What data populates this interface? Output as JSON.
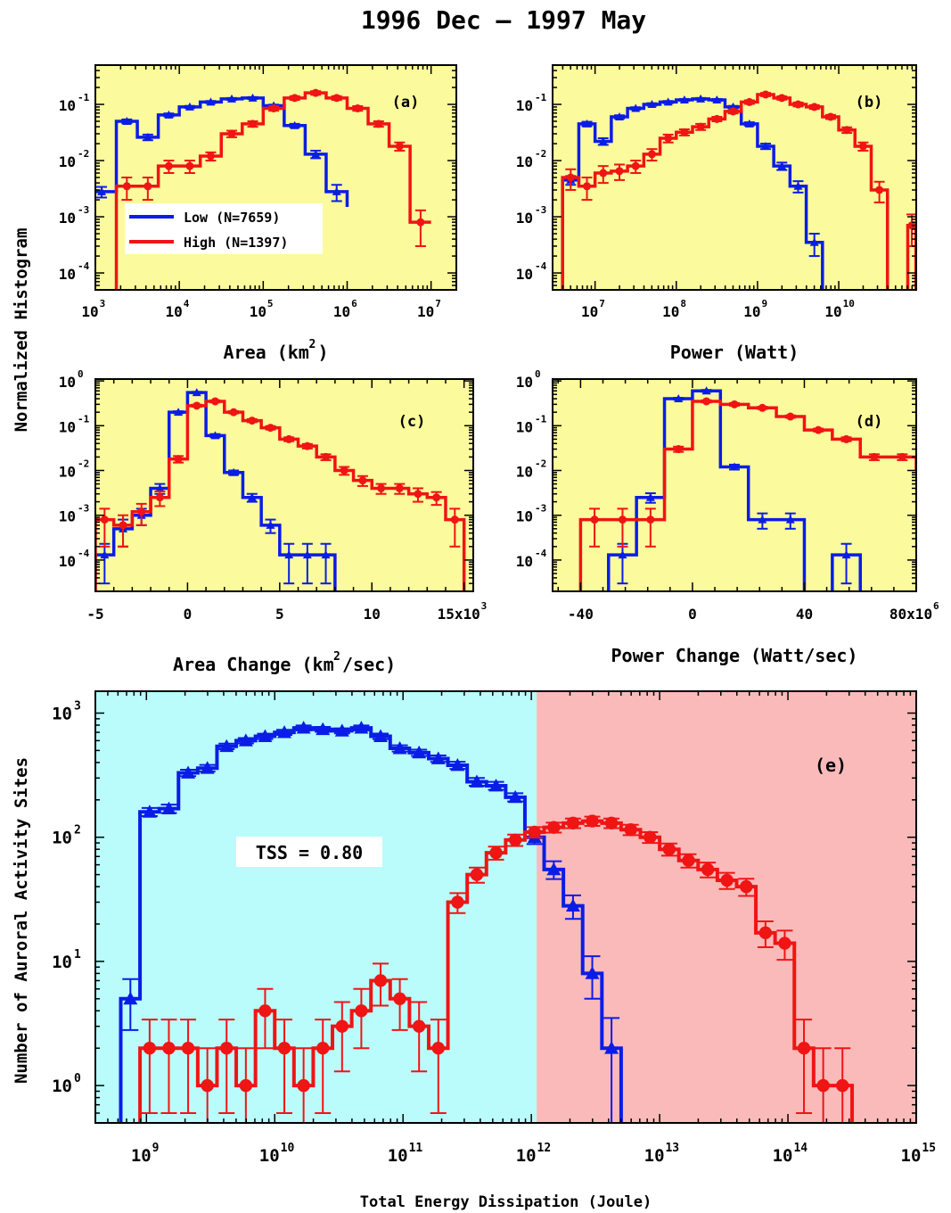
{
  "title": "1996 Dec – 1997 May",
  "shared_ylabel_top": "Normalized Histogram",
  "colors": {
    "low": "#0a1de6",
    "high": "#f01414",
    "panel_bg": "#fbfa9c",
    "low_region": "#bafcfc",
    "high_region": "#fbbaba"
  },
  "chart_data": [
    {
      "id": "a",
      "panel_label": "(a)",
      "type": "line",
      "xlabel": "Area (km",
      "xlabel_sup": "2",
      "xlabel_end": ")",
      "xscale": "log",
      "xlim": [
        1000,
        20000000
      ],
      "yscale": "log",
      "ylim": [
        5e-05,
        0.5
      ],
      "xticks": [
        {
          "v": 1000,
          "base": "10",
          "exp": "3"
        },
        {
          "v": 10000,
          "base": "10",
          "exp": "4"
        },
        {
          "v": 100000,
          "base": "10",
          "exp": "5"
        },
        {
          "v": 1000000,
          "base": "10",
          "exp": "6"
        },
        {
          "v": 10000000,
          "base": "10",
          "exp": "7"
        }
      ],
      "yticks": [
        {
          "v": 0.1,
          "base": "10",
          "exp": "-1"
        },
        {
          "v": 0.01,
          "base": "10",
          "exp": "-2"
        },
        {
          "v": 0.001,
          "base": "10",
          "exp": "-3"
        },
        {
          "v": 0.0001,
          "base": "10",
          "exp": "-4"
        }
      ],
      "legend": [
        {
          "name": "Low (N=7659)",
          "color": "low"
        },
        {
          "name": "High (N=1397)",
          "color": "high"
        }
      ],
      "series": [
        {
          "name": "Low (N=7659)",
          "color": "low",
          "marker": "triangle",
          "edges_log": [
            2.9,
            3.25,
            3.5,
            3.75,
            4.0,
            4.25,
            4.5,
            4.75,
            5.0,
            5.25,
            5.5,
            5.75,
            6.0
          ],
          "values": [
            0.0028,
            0.05,
            0.026,
            0.065,
            0.09,
            0.11,
            0.125,
            0.13,
            0.095,
            0.042,
            0.013,
            0.0028,
            0.0015
          ],
          "errors": [
            0.0006,
            0.004,
            0.003,
            0.004,
            0.004,
            0.005,
            0.005,
            0.005,
            0.004,
            0.003,
            0.002,
            0.0009,
            0.0005
          ]
        },
        {
          "name": "High (N=1397)",
          "color": "high",
          "marker": "circle",
          "edges_log": [
            3.25,
            3.5,
            3.75,
            4.0,
            4.25,
            4.5,
            4.75,
            5.0,
            5.25,
            5.5,
            5.75,
            6.0,
            6.25,
            6.5,
            6.75,
            7.0
          ],
          "values": [
            0.0035,
            0.0035,
            0.008,
            0.008,
            0.012,
            0.03,
            0.045,
            0.085,
            0.13,
            0.16,
            0.13,
            0.085,
            0.045,
            0.018,
            0.0008,
            0.0008
          ],
          "errors": [
            0.0015,
            0.0015,
            0.002,
            0.002,
            0.002,
            0.004,
            0.005,
            0.008,
            0.01,
            0.012,
            0.01,
            0.008,
            0.005,
            0.003,
            0.0005,
            0.0005
          ]
        }
      ]
    },
    {
      "id": "b",
      "panel_label": "(b)",
      "type": "line",
      "xlabel": "Power (Watt)",
      "xlabel_sup": "",
      "xlabel_end": "",
      "xscale": "log",
      "xlim": [
        3000000,
        90000000000
      ],
      "yscale": "log",
      "ylim": [
        5e-05,
        0.5
      ],
      "xticks": [
        {
          "v": 10000000,
          "base": "10",
          "exp": "7"
        },
        {
          "v": 100000000,
          "base": "10",
          "exp": "8"
        },
        {
          "v": 1000000000,
          "base": "10",
          "exp": "9"
        },
        {
          "v": 10000000000,
          "base": "10",
          "exp": "10"
        }
      ],
      "yticks": [
        {
          "v": 0.1,
          "base": "10",
          "exp": "-1"
        },
        {
          "v": 0.01,
          "base": "10",
          "exp": "-2"
        },
        {
          "v": 0.001,
          "base": "10",
          "exp": "-3"
        },
        {
          "v": 0.0001,
          "base": "10",
          "exp": "-4"
        }
      ],
      "series": [
        {
          "name": "Low",
          "color": "low",
          "marker": "triangle",
          "edges_log": [
            6.6,
            6.8,
            7.0,
            7.2,
            7.4,
            7.6,
            7.8,
            8.0,
            8.2,
            8.4,
            8.6,
            8.8,
            9.0,
            9.2,
            9.4,
            9.6,
            9.8
          ],
          "values": [
            0.0045,
            0.045,
            0.022,
            0.06,
            0.085,
            0.1,
            0.11,
            0.12,
            0.125,
            0.12,
            0.09,
            0.045,
            0.018,
            0.008,
            0.0035,
            0.00035
          ],
          "errors": [
            0.0008,
            0.004,
            0.003,
            0.004,
            0.004,
            0.005,
            0.005,
            0.005,
            0.005,
            0.005,
            0.004,
            0.003,
            0.002,
            0.0012,
            0.0008,
            0.00015
          ]
        },
        {
          "name": "High",
          "color": "high",
          "marker": "circle",
          "edges_log": [
            6.6,
            6.8,
            7.0,
            7.2,
            7.4,
            7.6,
            7.8,
            8.0,
            8.2,
            8.4,
            8.6,
            8.8,
            9.0,
            9.2,
            9.4,
            9.6,
            9.8,
            10.0,
            10.2,
            10.4,
            10.6
          ],
          "values": [
            0.005,
            0.0035,
            0.006,
            0.0065,
            0.008,
            0.013,
            0.025,
            0.032,
            0.04,
            0.055,
            0.075,
            0.11,
            0.15,
            0.13,
            0.1,
            0.09,
            0.06,
            0.035,
            0.018,
            0.003
          ],
          "errors": [
            0.002,
            0.0015,
            0.002,
            0.002,
            0.002,
            0.003,
            0.004,
            0.004,
            0.005,
            0.005,
            0.006,
            0.008,
            0.01,
            0.009,
            0.008,
            0.007,
            0.005,
            0.004,
            0.003,
            0.0012
          ]
        },
        {
          "name": "High tail",
          "color": "high",
          "marker": "circle",
          "edges_log": [
            10.85,
            10.95
          ],
          "values": [
            0.0007
          ],
          "errors": [
            0.0004
          ]
        }
      ]
    },
    {
      "id": "c",
      "panel_label": "(c)",
      "type": "line",
      "xlabel": "Area Change (km",
      "xlabel_sup": "2",
      "xlabel_end": "/sec)",
      "xscale": "linear",
      "xlim": [
        -5000,
        15500
      ],
      "yscale": "log",
      "ylim": [
        2e-05,
        1.1
      ],
      "xticks": [
        {
          "v": -5000,
          "base": "-5",
          "exp": ""
        },
        {
          "v": 0,
          "base": "0",
          "exp": ""
        },
        {
          "v": 5000,
          "base": "5",
          "exp": ""
        },
        {
          "v": 10000,
          "base": "10",
          "exp": ""
        },
        {
          "v": 15000,
          "base": "15x10",
          "exp": "3"
        }
      ],
      "yticks": [
        {
          "v": 1,
          "base": "10",
          "exp": "0"
        },
        {
          "v": 0.1,
          "base": "10",
          "exp": "-1"
        },
        {
          "v": 0.01,
          "base": "10",
          "exp": "-2"
        },
        {
          "v": 0.001,
          "base": "10",
          "exp": "-3"
        },
        {
          "v": 0.0001,
          "base": "10",
          "exp": "-4"
        }
      ],
      "series": [
        {
          "name": "Low",
          "color": "low",
          "marker": "triangle",
          "edges": [
            -5000,
            -4000,
            -3000,
            -2000,
            -1000,
            0,
            1000,
            2000,
            3000,
            4000,
            5000,
            6000,
            7000,
            8000
          ],
          "values": [
            0.00013,
            0.0005,
            0.001,
            0.004,
            0.2,
            0.55,
            0.06,
            0.009,
            0.0025,
            0.0006,
            0.00013,
            0.00013,
            0.00013
          ],
          "errors": [
            0.0001,
            0.0003,
            0.0004,
            0.001,
            0.01,
            0.02,
            0.005,
            0.001,
            0.0005,
            0.0002,
            0.0001,
            0.0001,
            0.0001
          ]
        },
        {
          "name": "High",
          "color": "high",
          "marker": "circle",
          "edges": [
            -5000,
            -4000,
            -3000,
            -2000,
            -1000,
            0,
            1000,
            2000,
            3000,
            4000,
            5000,
            6000,
            7000,
            8000,
            9000,
            10000,
            11000,
            12000,
            13000,
            14000,
            15000
          ],
          "values": [
            0.0008,
            0.0006,
            0.0012,
            0.0025,
            0.018,
            0.28,
            0.35,
            0.2,
            0.13,
            0.09,
            0.05,
            0.035,
            0.02,
            0.01,
            0.006,
            0.004,
            0.004,
            0.003,
            0.0025,
            0.0008
          ],
          "errors": [
            0.0006,
            0.0004,
            0.0006,
            0.0009,
            0.003,
            0.015,
            0.02,
            0.012,
            0.01,
            0.008,
            0.005,
            0.004,
            0.003,
            0.002,
            0.0015,
            0.001,
            0.001,
            0.001,
            0.0008,
            0.0006
          ]
        }
      ]
    },
    {
      "id": "d",
      "panel_label": "(d)",
      "type": "line",
      "xlabel": "Power Change (Watt/sec)",
      "xlabel_sup": "",
      "xlabel_end": "",
      "xscale": "linear",
      "xlim": [
        -50000000,
        80000000
      ],
      "yscale": "log",
      "ylim": [
        2e-05,
        1.1
      ],
      "xticks": [
        {
          "v": -40000000,
          "base": "-40",
          "exp": ""
        },
        {
          "v": 0,
          "base": "0",
          "exp": ""
        },
        {
          "v": 40000000,
          "base": "40",
          "exp": ""
        },
        {
          "v": 80000000,
          "base": "80x10",
          "exp": "6"
        }
      ],
      "yticks": [
        {
          "v": 1,
          "base": "10",
          "exp": "0"
        },
        {
          "v": 0.1,
          "base": "10",
          "exp": "-1"
        },
        {
          "v": 0.01,
          "base": "10",
          "exp": "-2"
        },
        {
          "v": 0.001,
          "base": "10",
          "exp": "-3"
        },
        {
          "v": 0.0001,
          "base": "10",
          "exp": "-4"
        }
      ],
      "series": [
        {
          "name": "Low",
          "color": "low",
          "marker": "triangle",
          "edges": [
            -30000000,
            -20000000,
            -10000000,
            0,
            10000000,
            20000000,
            30000000,
            40000000
          ],
          "values": [
            0.00013,
            0.0025,
            0.4,
            0.6,
            0.012,
            0.0008,
            0.0008
          ],
          "errors": [
            0.0001,
            0.0006,
            0.02,
            0.03,
            0.0015,
            0.0003,
            0.0003
          ]
        },
        {
          "name": "Low tail",
          "color": "low",
          "marker": "triangle",
          "edges": [
            50000000,
            60000000
          ],
          "values": [
            0.00013
          ],
          "errors": [
            0.0001
          ]
        },
        {
          "name": "High",
          "color": "high",
          "marker": "circle",
          "edges": [
            -40000000,
            -30000000,
            -20000000,
            -10000000,
            0,
            10000000,
            20000000,
            30000000,
            40000000,
            50000000,
            60000000,
            70000000,
            80000000
          ],
          "values": [
            0.0008,
            0.0008,
            0.0008,
            0.03,
            0.35,
            0.3,
            0.25,
            0.16,
            0.08,
            0.05,
            0.02,
            0.02,
            0.01
          ],
          "errors": [
            0.0006,
            0.0006,
            0.0006,
            0.004,
            0.02,
            0.02,
            0.015,
            0.01,
            0.006,
            0.005,
            0.003,
            0.003,
            0.002
          ]
        }
      ]
    },
    {
      "id": "e",
      "panel_label": "(e)",
      "type": "line",
      "xlabel": "Total Energy Dissipation (Joule)",
      "ylabel": "Number of Auroral Activity Sites",
      "annotation": "TSS = 0.80",
      "xscale": "log",
      "xlim": [
        400000000,
        1000000000000000
      ],
      "yscale": "log",
      "ylim": [
        0.5,
        1500
      ],
      "split_x": 1100000000000,
      "xticks": [
        {
          "v": 1000000000,
          "base": "10",
          "exp": "9"
        },
        {
          "v": 10000000000,
          "base": "10",
          "exp": "10"
        },
        {
          "v": 100000000000,
          "base": "10",
          "exp": "11"
        },
        {
          "v": 1000000000000,
          "base": "10",
          "exp": "12"
        },
        {
          "v": 10000000000000,
          "base": "10",
          "exp": "13"
        },
        {
          "v": 100000000000000,
          "base": "10",
          "exp": "14"
        },
        {
          "v": 1000000000000000,
          "base": "10",
          "exp": "15"
        }
      ],
      "yticks": [
        {
          "v": 1000,
          "base": "10",
          "exp": "3"
        },
        {
          "v": 100,
          "base": "10",
          "exp": "2"
        },
        {
          "v": 10,
          "base": "10",
          "exp": "1"
        },
        {
          "v": 1,
          "base": "10",
          "exp": "0"
        }
      ],
      "series": [
        {
          "name": "Low",
          "color": "low",
          "marker": "triangle",
          "edges_log": [
            8.8,
            8.95,
            9.1,
            9.25,
            9.4,
            9.55,
            9.7,
            9.85,
            10.0,
            10.15,
            10.3,
            10.45,
            10.6,
            10.75,
            10.9,
            11.05,
            11.2,
            11.35,
            11.5,
            11.65,
            11.8,
            11.95,
            12.1,
            12.25,
            12.4,
            12.55,
            12.7,
            12.85,
            13.0,
            13.15
          ],
          "values": [
            5,
            160,
            170,
            330,
            360,
            540,
            600,
            650,
            700,
            760,
            740,
            720,
            760,
            650,
            520,
            480,
            430,
            380,
            280,
            260,
            210,
            100,
            55,
            28,
            8,
            2
          ],
          "errors": [
            2.2,
            12,
            13,
            20,
            22,
            28,
            30,
            32,
            33,
            35,
            34,
            34,
            35,
            33,
            30,
            28,
            26,
            25,
            20,
            19,
            16,
            12,
            9,
            6,
            3,
            1.5
          ]
        },
        {
          "name": "High",
          "color": "high",
          "marker": "circle",
          "edges_log": [
            8.95,
            9.1,
            9.25,
            9.4,
            9.55,
            9.7,
            9.85,
            10.0,
            10.15,
            10.3,
            10.45,
            10.6,
            10.75,
            10.9,
            11.05,
            11.2,
            11.35,
            11.5,
            11.65,
            11.8,
            11.95,
            12.1,
            12.25,
            12.4,
            12.55,
            12.7,
            12.85,
            13.0,
            13.15,
            13.3,
            13.45,
            13.6,
            13.75,
            13.9,
            14.05,
            14.2,
            14.35,
            14.5,
            14.65,
            14.8,
            14.95,
            15.1
          ],
          "values": [
            2,
            2,
            2,
            1,
            2,
            1,
            4,
            2,
            1,
            2,
            3,
            4,
            7,
            5,
            3,
            2,
            30,
            50,
            75,
            95,
            110,
            120,
            130,
            135,
            130,
            115,
            100,
            80,
            65,
            55,
            45,
            40,
            17,
            14,
            2,
            1,
            1
          ],
          "errors": [
            1.4,
            1.4,
            1.4,
            1,
            1.4,
            1,
            2,
            1.4,
            1,
            1.4,
            1.7,
            2,
            2.6,
            2.2,
            1.7,
            1.4,
            5.5,
            7,
            9,
            10,
            10.5,
            11,
            11.5,
            11.5,
            11.5,
            11,
            10,
            9,
            8,
            7.5,
            6.7,
            6.3,
            4,
            3.7,
            1.4,
            1,
            1
          ]
        }
      ]
    }
  ]
}
